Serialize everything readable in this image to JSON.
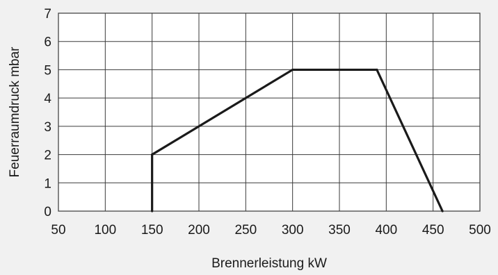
{
  "chart_data": {
    "type": "line",
    "title": "",
    "xlabel": "Brennerleistung kW",
    "ylabel": "Feuerraumdruck mbar",
    "xlim": [
      50,
      500
    ],
    "ylim": [
      0,
      7
    ],
    "x_ticks": [
      50,
      100,
      150,
      200,
      250,
      300,
      350,
      400,
      450,
      500
    ],
    "y_ticks": [
      0,
      1,
      2,
      3,
      4,
      5,
      6,
      7
    ],
    "x_tick_labels": [
      "50",
      "100",
      "150",
      "200",
      "250",
      "300",
      "350",
      "400",
      "450",
      "500"
    ],
    "y_tick_labels": [
      "0",
      "1",
      "2",
      "3",
      "4",
      "5",
      "6",
      "7"
    ],
    "grid": true,
    "series": [
      {
        "x": [
          150,
          150,
          300,
          390,
          460
        ],
        "y": [
          0,
          2,
          5,
          5,
          0
        ]
      }
    ],
    "colors": {
      "line": "#1a1a1a",
      "grid": "#3a3a3a",
      "plot_background": "#ffffff",
      "page_background": "#f1f1f1"
    }
  }
}
